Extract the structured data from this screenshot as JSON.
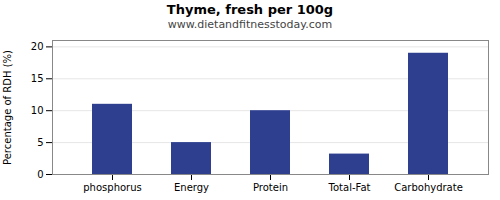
{
  "chart_data": {
    "type": "bar",
    "title": "Thyme, fresh per 100g",
    "subtitle": "www.dietandfitnesstoday.com",
    "categories": [
      "phosphorus",
      "Energy",
      "Protein",
      "Total-Fat",
      "Carbohydrate"
    ],
    "values": [
      11,
      5,
      10,
      3.2,
      19
    ],
    "color": "#2e3f8f",
    "ylabel": "Percentage of RDH (%)",
    "ylim": [
      0,
      21
    ],
    "yticks": [
      0,
      5,
      10,
      15,
      20
    ],
    "grid": true
  }
}
